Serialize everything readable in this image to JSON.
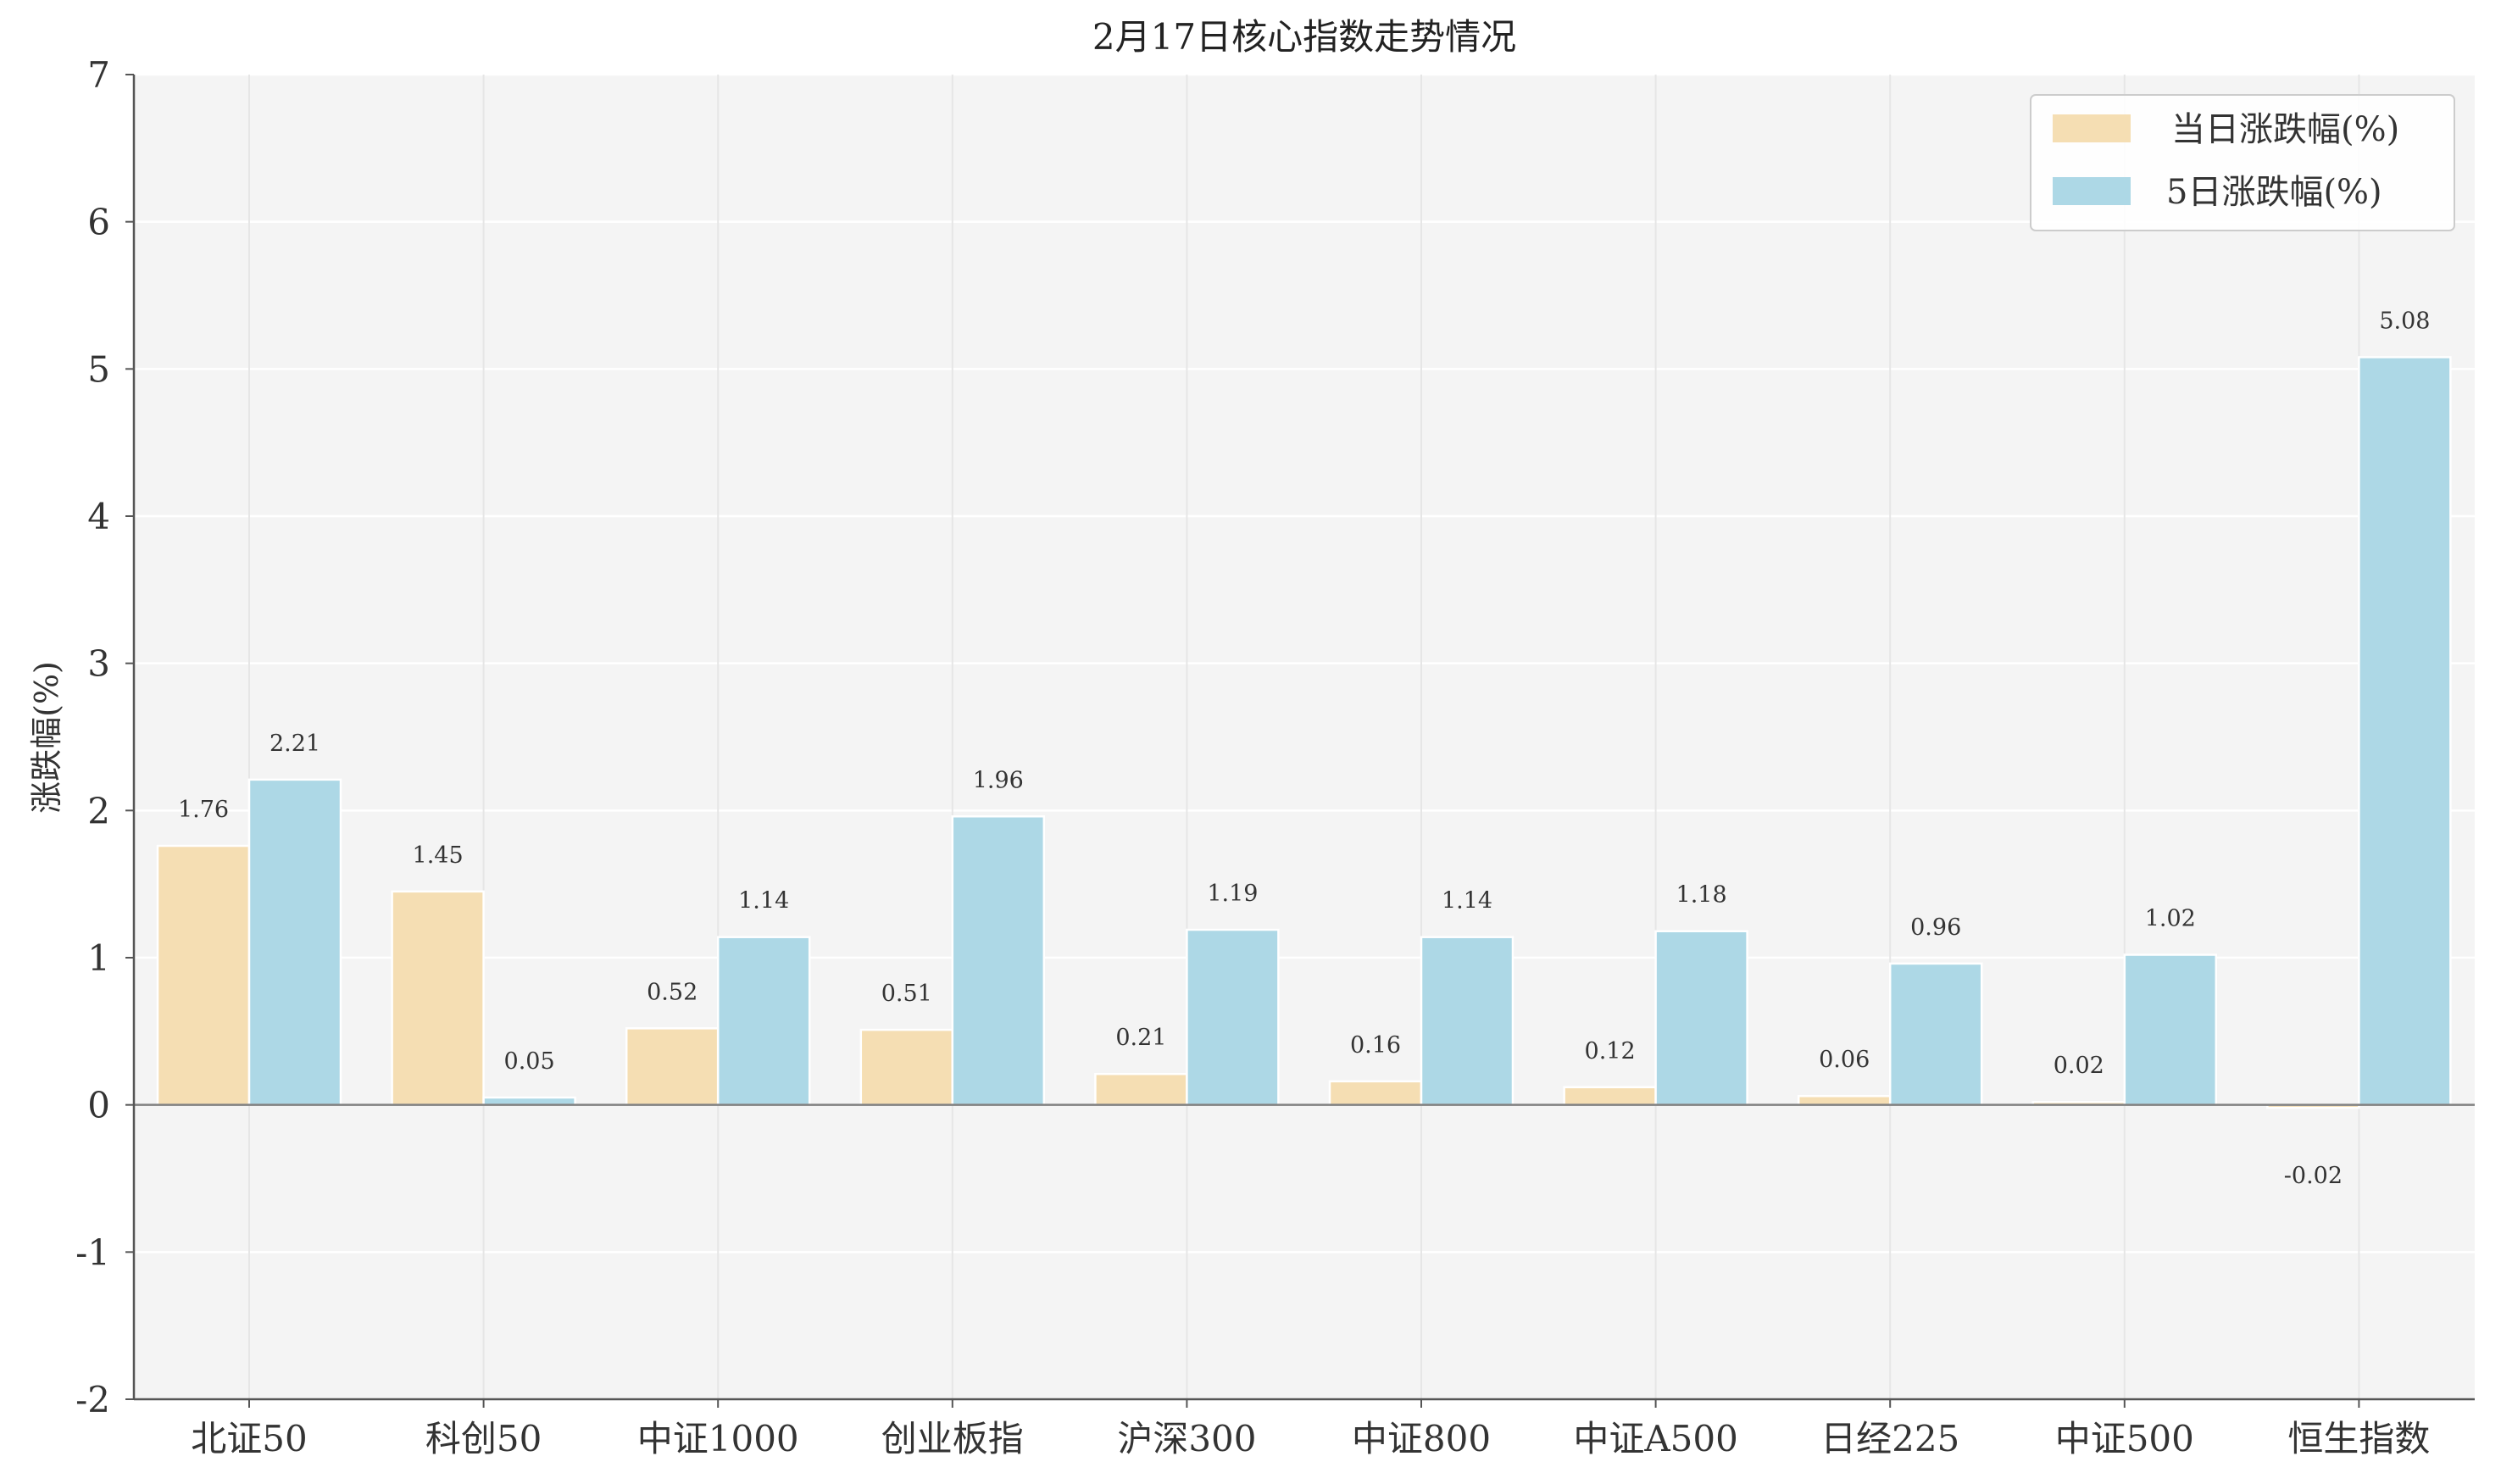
{
  "chart_data": {
    "type": "bar",
    "title": "2月17日核心指数走势情况",
    "xlabel": "",
    "ylabel": "涨跌幅(%)",
    "ylim": [
      -2,
      7
    ],
    "yticks": [
      -2,
      -1,
      0,
      1,
      2,
      3,
      4,
      5,
      6,
      7
    ],
    "categories": [
      "北证50",
      "科创50",
      "中证1000",
      "创业板指",
      "沪深300",
      "中证800",
      "中证A500",
      "日经225",
      "中证500",
      "恒生指数"
    ],
    "series": [
      {
        "name": "当日涨跌幅(%)",
        "color": "#f5deb3",
        "values": [
          1.76,
          1.45,
          0.52,
          0.51,
          0.21,
          0.16,
          0.12,
          0.06,
          0.02,
          -0.02
        ]
      },
      {
        "name": "5日涨跌幅(%)",
        "color": "#add8e6",
        "values": [
          2.21,
          0.05,
          1.14,
          1.96,
          1.19,
          1.14,
          1.18,
          0.96,
          1.02,
          5.08
        ]
      }
    ],
    "legend_position": "top-right",
    "grid": true,
    "plot_background": "#f4f4f4"
  }
}
